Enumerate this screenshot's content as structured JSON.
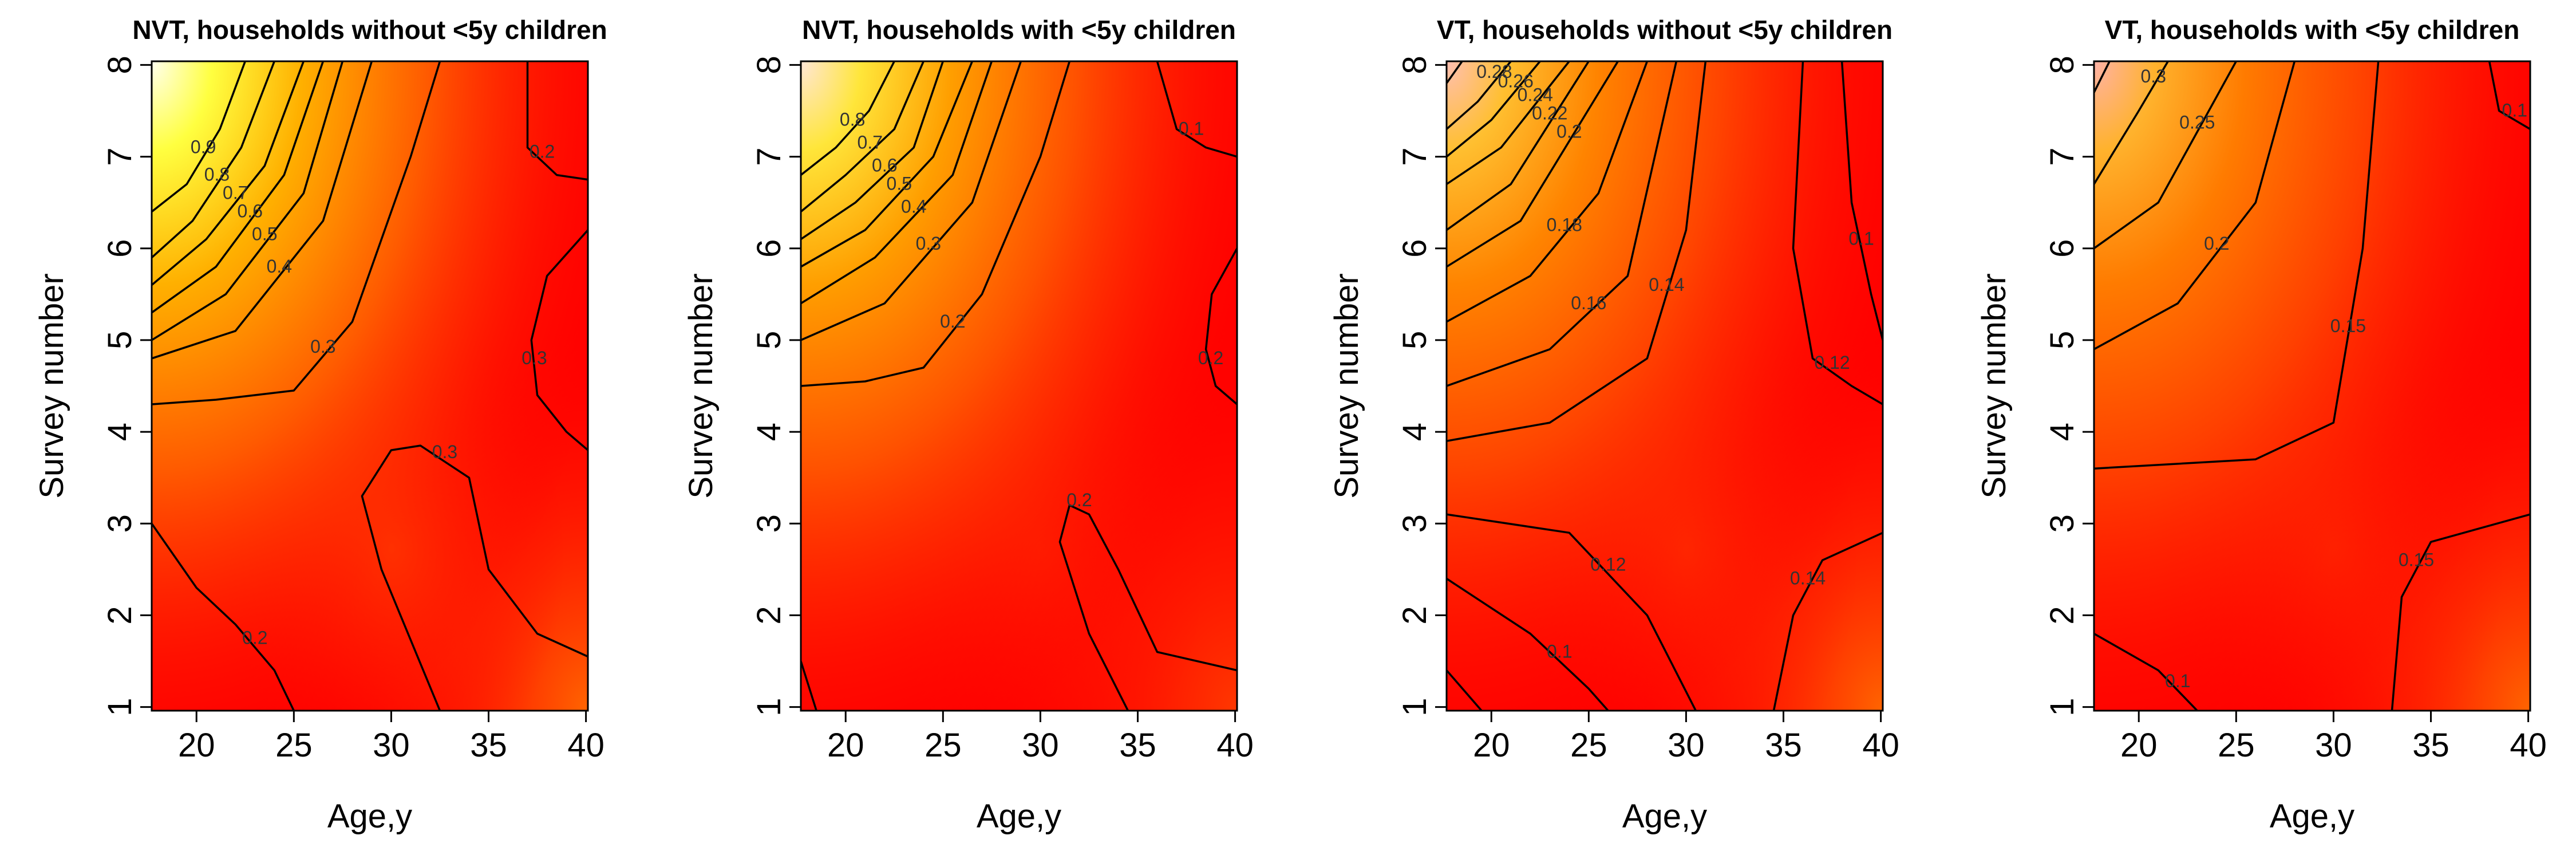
{
  "chart_data": [
    {
      "type": "contour",
      "title": "NVT, households without <5y children",
      "x_label": "Age,y",
      "y_label": "Survey number",
      "xlim": [
        17.7,
        40.1
      ],
      "ylim": [
        0.96,
        8.04
      ],
      "xticks": [
        20,
        25,
        30,
        35,
        40
      ],
      "yticks": [
        1,
        2,
        3,
        4,
        5,
        6,
        7,
        8
      ],
      "contours": [
        {
          "level": 0.9,
          "labeled": true,
          "x": [
            17.7,
            19.5,
            21.2,
            22.5
          ],
          "y": [
            6.4,
            6.7,
            7.3,
            8.04
          ]
        },
        {
          "level": 0.8,
          "labeled": true,
          "x": [
            17.7,
            19.8,
            22.3,
            24
          ],
          "y": [
            5.9,
            6.3,
            7.1,
            8.04
          ]
        },
        {
          "level": 0.7,
          "labeled": true,
          "x": [
            17.7,
            20.5,
            23.5,
            25.5
          ],
          "y": [
            5.6,
            6.1,
            6.9,
            8.04
          ]
        },
        {
          "level": 0.6,
          "labeled": true,
          "x": [
            17.7,
            21,
            24.5,
            26.5
          ],
          "y": [
            5.3,
            5.8,
            6.8,
            8.04
          ]
        },
        {
          "level": 0.5,
          "labeled": true,
          "x": [
            17.7,
            21.5,
            25.5,
            27.5
          ],
          "y": [
            5.0,
            5.5,
            6.6,
            8.04
          ]
        },
        {
          "level": 0.4,
          "labeled": true,
          "x": [
            17.7,
            22,
            26.5,
            29
          ],
          "y": [
            4.8,
            5.1,
            6.3,
            8.04
          ]
        },
        {
          "level": 0.3,
          "labeled": true,
          "x": [
            17.7,
            21,
            25,
            28,
            31,
            32.5
          ],
          "y": [
            4.3,
            4.35,
            4.45,
            5.2,
            7.0,
            8.04
          ]
        },
        {
          "level": 0.2,
          "labeled": true,
          "x": [
            37,
            37,
            38.5,
            40.1
          ],
          "y": [
            8.04,
            7.1,
            6.8,
            6.75
          ]
        },
        {
          "level": 0.3,
          "labeled": true,
          "x": [
            40.1,
            38,
            37.2,
            37.5,
            39,
            40.1
          ],
          "y": [
            6.2,
            5.7,
            5.0,
            4.4,
            4.0,
            3.8
          ]
        },
        {
          "level": 0.3,
          "labeled": true,
          "x": [
            32.5,
            29.5,
            28.5,
            30,
            31.5,
            34,
            35,
            37.5,
            40.1
          ],
          "y": [
            0.96,
            2.5,
            3.3,
            3.8,
            3.85,
            3.5,
            2.5,
            1.8,
            1.55
          ]
        },
        {
          "level": 0.2,
          "labeled": true,
          "x": [
            17.7,
            20,
            22,
            24,
            25
          ],
          "y": [
            3.0,
            2.3,
            1.9,
            1.4,
            0.96
          ]
        }
      ]
    },
    {
      "type": "contour",
      "title": "NVT, households with <5y children",
      "x_label": "Age,y",
      "y_label": "Survey number",
      "xlim": [
        17.7,
        40.1
      ],
      "ylim": [
        0.96,
        8.04
      ],
      "xticks": [
        20,
        25,
        30,
        35,
        40
      ],
      "yticks": [
        1,
        2,
        3,
        4,
        5,
        6,
        7,
        8
      ],
      "contours": [
        {
          "level": 0.8,
          "labeled": true,
          "x": [
            17.7,
            19.5,
            21.2,
            22.5
          ],
          "y": [
            6.8,
            7.1,
            7.5,
            8.04
          ]
        },
        {
          "level": 0.7,
          "labeled": true,
          "x": [
            17.7,
            20,
            22.5,
            24
          ],
          "y": [
            6.4,
            6.8,
            7.3,
            8.04
          ]
        },
        {
          "level": 0.6,
          "labeled": true,
          "x": [
            17.7,
            20.5,
            23.5,
            25
          ],
          "y": [
            6.1,
            6.5,
            7.1,
            8.04
          ]
        },
        {
          "level": 0.5,
          "labeled": true,
          "x": [
            17.7,
            21,
            24.5,
            26.5
          ],
          "y": [
            5.8,
            6.2,
            7.0,
            8.04
          ]
        },
        {
          "level": 0.4,
          "labeled": true,
          "x": [
            17.7,
            21.5,
            25.5,
            27.5
          ],
          "y": [
            5.4,
            5.9,
            6.8,
            8.04
          ]
        },
        {
          "level": 0.3,
          "labeled": true,
          "x": [
            17.7,
            22,
            26.5,
            29
          ],
          "y": [
            5.0,
            5.4,
            6.5,
            8.04
          ]
        },
        {
          "level": 0.2,
          "labeled": true,
          "x": [
            17.7,
            21,
            24,
            27,
            30,
            31.5
          ],
          "y": [
            4.5,
            4.55,
            4.7,
            5.5,
            7.0,
            8.04
          ]
        },
        {
          "level": 0.1,
          "labeled": true,
          "x": [
            36,
            37,
            38.5,
            40.1
          ],
          "y": [
            8.04,
            7.3,
            7.1,
            7.0
          ]
        },
        {
          "level": 0.2,
          "labeled": true,
          "x": [
            40.1,
            38.8,
            38.5,
            39,
            40.1
          ],
          "y": [
            6.0,
            5.5,
            4.9,
            4.5,
            4.3
          ]
        },
        {
          "level": 0.2,
          "labeled": true,
          "x": [
            34.5,
            32.5,
            31,
            31.5,
            32.5,
            34,
            36,
            40.1
          ],
          "y": [
            0.96,
            1.8,
            2.8,
            3.2,
            3.1,
            2.5,
            1.6,
            1.4
          ]
        },
        {
          "level": 0.1,
          "labeled": false,
          "x": [
            17.7,
            18.5
          ],
          "y": [
            1.5,
            0.96
          ]
        }
      ]
    },
    {
      "type": "contour",
      "title": "VT, households without <5y children",
      "x_label": "Age,y",
      "y_label": "Survey number",
      "xlim": [
        17.7,
        40.1
      ],
      "ylim": [
        0.96,
        8.04
      ],
      "xticks": [
        20,
        25,
        30,
        35,
        40
      ],
      "yticks": [
        1,
        2,
        3,
        4,
        5,
        6,
        7,
        8
      ],
      "contours": [
        {
          "level": 0.3,
          "labeled": false,
          "x": [
            17.7,
            18.5
          ],
          "y": [
            7.8,
            8.04
          ]
        },
        {
          "level": 0.28,
          "labeled": true,
          "x": [
            17.7,
            19.3,
            21
          ],
          "y": [
            7.3,
            7.6,
            8.04
          ]
        },
        {
          "level": 0.26,
          "labeled": true,
          "x": [
            17.7,
            20,
            22.5
          ],
          "y": [
            7.0,
            7.4,
            8.04
          ]
        },
        {
          "level": 0.24,
          "labeled": true,
          "x": [
            17.7,
            20.5,
            24
          ],
          "y": [
            6.7,
            7.1,
            8.04
          ]
        },
        {
          "level": 0.22,
          "labeled": true,
          "x": [
            17.7,
            21,
            25
          ],
          "y": [
            6.2,
            6.7,
            8.04
          ]
        },
        {
          "level": 0.2,
          "labeled": true,
          "x": [
            17.7,
            21.5,
            26.5
          ],
          "y": [
            5.8,
            6.3,
            8.04
          ]
        },
        {
          "level": 0.18,
          "labeled": true,
          "x": [
            17.7,
            22,
            25.5,
            28
          ],
          "y": [
            5.2,
            5.7,
            6.6,
            8.04
          ]
        },
        {
          "level": 0.16,
          "labeled": true,
          "x": [
            17.7,
            23,
            27,
            29.5
          ],
          "y": [
            4.5,
            4.9,
            5.7,
            8.04
          ]
        },
        {
          "level": 0.14,
          "labeled": true,
          "x": [
            17.7,
            23,
            28,
            30,
            31
          ],
          "y": [
            3.9,
            4.1,
            4.8,
            6.2,
            8.04
          ]
        },
        {
          "level": 0.1,
          "labeled": true,
          "x": [
            38,
            38.5,
            39.5,
            40.1
          ],
          "y": [
            8.04,
            6.5,
            5.5,
            5.0
          ]
        },
        {
          "level": 0.12,
          "labeled": true,
          "x": [
            36,
            35.5,
            36.5,
            38.5,
            40.1
          ],
          "y": [
            8.04,
            6.0,
            4.8,
            4.5,
            4.3
          ]
        },
        {
          "level": 0.12,
          "labeled": true,
          "x": [
            17.7,
            24,
            28,
            30.5
          ],
          "y": [
            3.1,
            2.9,
            2.0,
            0.96
          ]
        },
        {
          "level": 0.1,
          "labeled": true,
          "x": [
            17.7,
            22,
            25,
            26
          ],
          "y": [
            2.4,
            1.8,
            1.2,
            0.96
          ]
        },
        {
          "level": 0.14,
          "labeled": true,
          "x": [
            34.5,
            35.5,
            37,
            40.1
          ],
          "y": [
            0.96,
            2.0,
            2.6,
            2.9
          ]
        },
        {
          "level": 0.08,
          "labeled": false,
          "x": [
            17.7,
            19.5
          ],
          "y": [
            1.4,
            0.96
          ]
        }
      ]
    },
    {
      "type": "contour",
      "title": "VT, households with <5y children",
      "x_label": "Age,y",
      "y_label": "Survey number",
      "xlim": [
        17.7,
        40.1
      ],
      "ylim": [
        0.96,
        8.04
      ],
      "xticks": [
        20,
        25,
        30,
        35,
        40
      ],
      "yticks": [
        1,
        2,
        3,
        4,
        5,
        6,
        7,
        8
      ],
      "contours": [
        {
          "level": 0.35,
          "labeled": false,
          "x": [
            17.7,
            18.5
          ],
          "y": [
            7.7,
            8.04
          ]
        },
        {
          "level": 0.3,
          "labeled": true,
          "x": [
            17.7,
            20,
            21.5
          ],
          "y": [
            6.7,
            7.5,
            8.04
          ]
        },
        {
          "level": 0.25,
          "labeled": true,
          "x": [
            17.7,
            21,
            25
          ],
          "y": [
            6.0,
            6.5,
            8.04
          ]
        },
        {
          "level": 0.2,
          "labeled": true,
          "x": [
            17.7,
            22,
            26,
            28
          ],
          "y": [
            4.9,
            5.4,
            6.5,
            8.04
          ]
        },
        {
          "level": 0.15,
          "labeled": true,
          "x": [
            17.7,
            26,
            30,
            31.5,
            32.3
          ],
          "y": [
            3.6,
            3.7,
            4.1,
            6.0,
            8.04
          ]
        },
        {
          "level": 0.1,
          "labeled": true,
          "x": [
            38,
            38.5,
            40.1
          ],
          "y": [
            8.04,
            7.5,
            7.3
          ]
        },
        {
          "level": 0.15,
          "labeled": true,
          "x": [
            33,
            33.5,
            35,
            40.1
          ],
          "y": [
            0.96,
            2.2,
            2.8,
            3.1
          ]
        },
        {
          "level": 0.1,
          "labeled": true,
          "x": [
            17.7,
            21,
            23
          ],
          "y": [
            1.8,
            1.4,
            0.96
          ]
        }
      ]
    }
  ]
}
